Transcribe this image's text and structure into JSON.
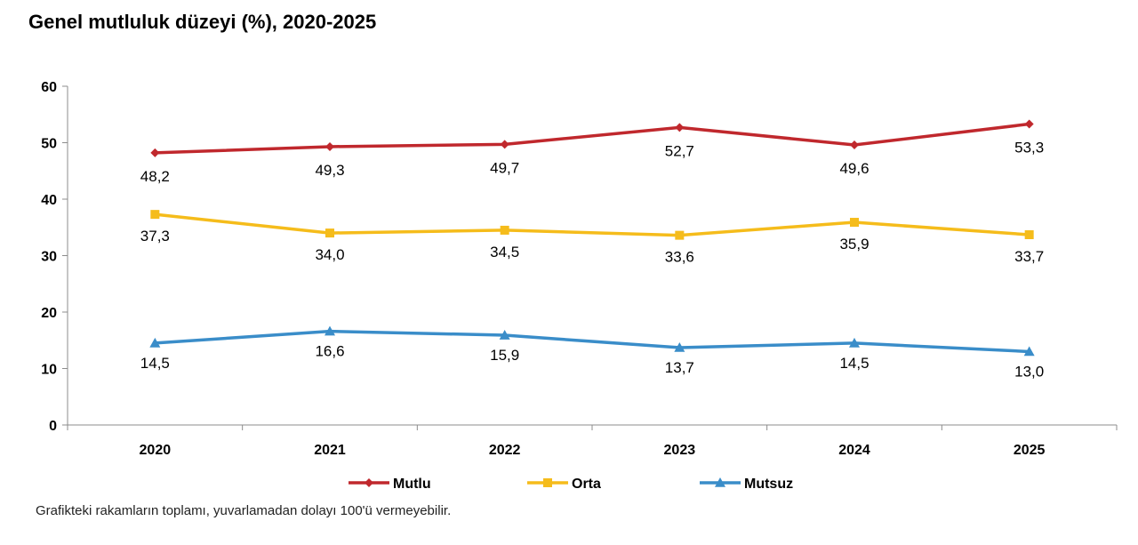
{
  "title": "Genel mutluluk düzeyi (%), 2020-2025",
  "note": "Grafikteki rakamların toplamı, yuvarlamadan dolayı 100'ü vermeyebilir.",
  "chart_data": {
    "type": "line",
    "title": "Genel mutluluk düzeyi (%), 2020-2025",
    "xlabel": "",
    "ylabel": "",
    "categories": [
      "2020",
      "2021",
      "2022",
      "2023",
      "2024",
      "2025"
    ],
    "ylim": [
      0,
      60
    ],
    "yticks": [
      0,
      10,
      20,
      30,
      40,
      50,
      60
    ],
    "ytick_labels": [
      "0",
      "10",
      "20",
      "30",
      "40",
      "50",
      "60"
    ],
    "legend_position": "bottom",
    "series": [
      {
        "name": "Mutlu",
        "color": "#C0282D",
        "marker": "diamond",
        "values": [
          48.2,
          49.3,
          49.7,
          52.7,
          49.6,
          53.3
        ],
        "labels": [
          "48,2",
          "49,3",
          "49,7",
          "52,7",
          "49,6",
          "53,3"
        ]
      },
      {
        "name": "Orta",
        "color": "#F5BC1B",
        "marker": "square",
        "values": [
          37.3,
          34.0,
          34.5,
          33.6,
          35.9,
          33.7
        ],
        "labels": [
          "37,3",
          "34,0",
          "34,5",
          "33,6",
          "35,9",
          "33,7"
        ]
      },
      {
        "name": "Mutsuz",
        "color": "#3A8DC9",
        "marker": "triangle",
        "values": [
          14.5,
          16.6,
          15.9,
          13.7,
          14.5,
          13.0
        ],
        "labels": [
          "14,5",
          "16,6",
          "15,9",
          "13,7",
          "14,5",
          "13,0"
        ]
      }
    ]
  }
}
